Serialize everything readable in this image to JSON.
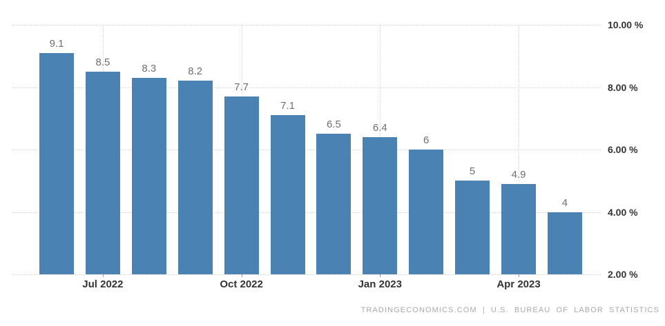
{
  "chart_data": {
    "type": "bar",
    "title": "",
    "xlabel": "",
    "ylabel": "",
    "values": [
      9.1,
      8.5,
      8.3,
      8.2,
      7.7,
      7.1,
      6.5,
      6.4,
      6,
      5,
      4.9,
      4
    ],
    "bar_labels": [
      "9.1",
      "8.5",
      "8.3",
      "8.2",
      "7.7",
      "7.1",
      "6.5",
      "6.4",
      "6",
      "5",
      "4.9",
      "4"
    ],
    "x_ticks": [
      {
        "bar_index": 1,
        "label": "Jul 2022"
      },
      {
        "bar_index": 4,
        "label": "Oct 2022"
      },
      {
        "bar_index": 7,
        "label": "Jan 2023"
      },
      {
        "bar_index": 10,
        "label": "Apr 2023"
      }
    ],
    "y_ticks": [
      {
        "value": 10,
        "label": "10.00 %"
      },
      {
        "value": 8,
        "label": "8.00 %"
      },
      {
        "value": 6,
        "label": "6.00 %"
      },
      {
        "value": 4,
        "label": "4.00 %"
      },
      {
        "value": 2,
        "label": "2.00 %"
      }
    ],
    "ylim": [
      2,
      10
    ],
    "grid": "dotted",
    "legend_position": "none",
    "colors": {
      "bar_fill": "#4a82b4",
      "value_label": "#6e6e6e",
      "axis_label": "#333333",
      "gridline": "#d4d4d4",
      "tick_mark": "#999999",
      "source_text": "#a7a9ac",
      "background": "#ffffff"
    },
    "source_text": "TRADINGECONOMICS.COM | U.S. BUREAU OF LABOR STATISTICS"
  }
}
